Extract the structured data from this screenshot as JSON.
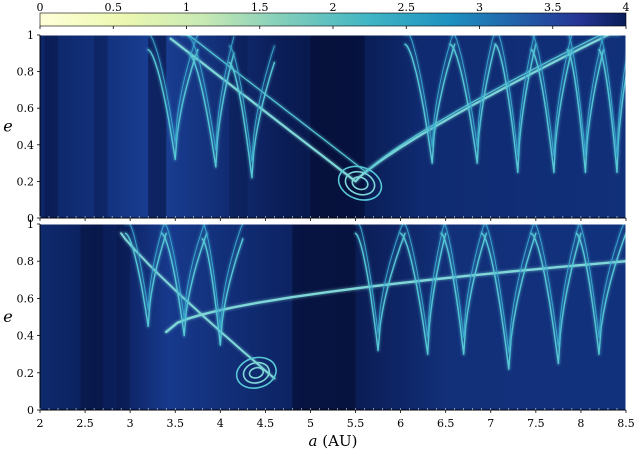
{
  "chart_data": [
    {
      "type": "heatmap",
      "panel": "top",
      "colorbar": {
        "ticks": [
          "0",
          "0.5",
          "1",
          "1.5",
          "2",
          "2.5",
          "3",
          "3.5",
          "4"
        ],
        "range": [
          0,
          4
        ],
        "colormap": "YlGnBu",
        "colors": [
          "#ffffd9",
          "#c7e9b4",
          "#7fcdbb",
          "#41b6c4",
          "#1d91c0",
          "#225ea8",
          "#253494",
          "#081d58"
        ]
      },
      "xlim": [
        2,
        8.5
      ],
      "ylim": [
        0,
        1
      ],
      "xticks": [
        "2",
        "2.5",
        "3",
        "3.5",
        "4",
        "4.5",
        "5",
        "5.5",
        "6",
        "6.5",
        "7",
        "7.5",
        "8",
        "8.5"
      ],
      "yticks": [
        "0",
        "0.2",
        "0.4",
        "0.6",
        "0.8",
        "1"
      ],
      "ylabel": "e",
      "xlabel": "",
      "features": {
        "broad_arc_apex": {
          "a": 5.5,
          "e": 0.2
        },
        "island_center": {
          "a": 5.55,
          "e": 0.19
        },
        "comb_minima": [
          {
            "a": 3.5,
            "e": 0.32
          },
          {
            "a": 3.95,
            "e": 0.28
          },
          {
            "a": 4.35,
            "e": 0.22
          },
          {
            "a": 6.35,
            "e": 0.3
          },
          {
            "a": 6.85,
            "e": 0.3
          },
          {
            "a": 7.3,
            "e": 0.25
          },
          {
            "a": 7.7,
            "e": 0.25
          },
          {
            "a": 8.05,
            "e": 0.25
          },
          {
            "a": 8.4,
            "e": 0.25
          }
        ]
      }
    },
    {
      "type": "heatmap",
      "panel": "bottom",
      "xlim": [
        2,
        8.5
      ],
      "ylim": [
        0,
        1
      ],
      "xticks": [
        "2",
        "2.5",
        "3",
        "3.5",
        "4",
        "4.5",
        "5",
        "5.5",
        "6",
        "6.5",
        "7",
        "7.5",
        "8",
        "8.5"
      ],
      "yticks": [
        "0",
        "0.2",
        "0.4",
        "0.6",
        "0.8",
        "1"
      ],
      "ylabel": "e",
      "xlabel": "a (AU)",
      "features": {
        "long_ridge": {
          "from": {
            "a": 3.4,
            "e": 0.42
          },
          "to": {
            "a": 8.5,
            "e": 0.8
          }
        },
        "island_center": {
          "a": 4.4,
          "e": 0.2
        },
        "comb_minima": [
          {
            "a": 3.2,
            "e": 0.45
          },
          {
            "a": 3.6,
            "e": 0.4
          },
          {
            "a": 4.0,
            "e": 0.35
          },
          {
            "a": 5.75,
            "e": 0.32
          },
          {
            "a": 6.3,
            "e": 0.3
          },
          {
            "a": 6.7,
            "e": 0.3
          },
          {
            "a": 7.2,
            "e": 0.22
          },
          {
            "a": 7.75,
            "e": 0.25
          },
          {
            "a": 8.2,
            "e": 0.3
          }
        ]
      }
    }
  ]
}
